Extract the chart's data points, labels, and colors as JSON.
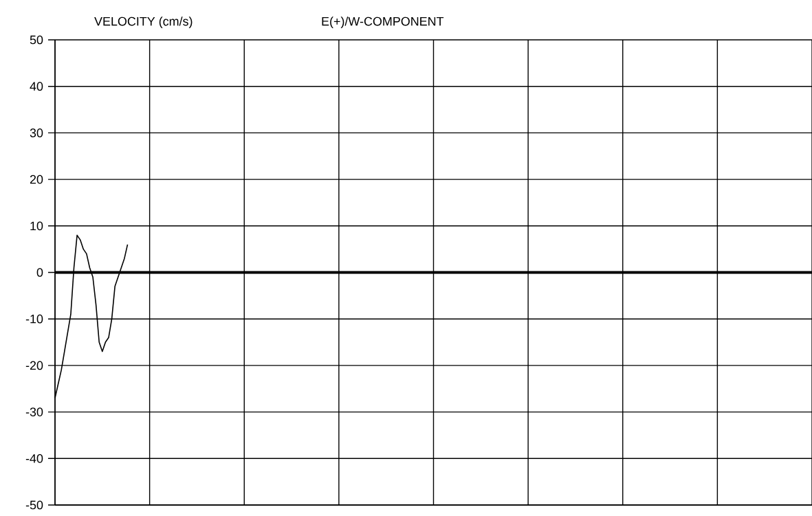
{
  "chart_data": {
    "type": "line",
    "title": "E(+)/W-COMPONENT",
    "ylabel": "VELOCITY (cm/s)",
    "categories": [
      null,
      null,
      null,
      null,
      null,
      null,
      null,
      null,
      null,
      null,
      null,
      null,
      null,
      null,
      null,
      null,
      null,
      null,
      null,
      null,
      null,
      null,
      null,
      null,
      null,
      null,
      null,
      null,
      null,
      null,
      null,
      null,
      null,
      null,
      null,
      null,
      null,
      null,
      null,
      null,
      null,
      null,
      null,
      null,
      null,
      null,
      null,
      null,
      null,
      null,
      null,
      null,
      null,
      null,
      null,
      null,
      null,
      null,
      null,
      null,
      null,
      null,
      null,
      null,
      null,
      null,
      null,
      null,
      null,
      null,
      null,
      null,
      null,
      null,
      null,
      null,
      null,
      null,
      null,
      null,
      null,
      null,
      null,
      null,
      null,
      null,
      null,
      null,
      null,
      null,
      null,
      null,
      null,
      null,
      null,
      null,
      null,
      null,
      null,
      null,
      null,
      null,
      null,
      null,
      null,
      null,
      null,
      null,
      null,
      null,
      null,
      null,
      null,
      null,
      null,
      null,
      null,
      null,
      null,
      null,
      null,
      null,
      null,
      null,
      null,
      null,
      null,
      null,
      null,
      null,
      null,
      null,
      null,
      null,
      null,
      null,
      null,
      null,
      null,
      null,
      null,
      null,
      null,
      null,
      null,
      null,
      null,
      null,
      null,
      null,
      null,
      null,
      null,
      null,
      null,
      null,
      null,
      null,
      null,
      null,
      null,
      null,
      null,
      null,
      null,
      null,
      null,
      null,
      null,
      null,
      null,
      null,
      null,
      null,
      null,
      null,
      null,
      null,
      null,
      null,
      null,
      null,
      null,
      null,
      null,
      null,
      null,
      null,
      null,
      null,
      null,
      null,
      null,
      null,
      null,
      null,
      null,
      null,
      null,
      null,
      null,
      null,
      null,
      null,
      null,
      null,
      null,
      null,
      null,
      null,
      null,
      null,
      null,
      null,
      null,
      null,
      null,
      null,
      null,
      null,
      null,
      null,
      null,
      null,
      null,
      null,
      null,
      null,
      null,
      null,
      null,
      null,
      null,
      null,
      null,
      null,
      null,
      null,
      null,
      null,
      null
    ],
    "series": [
      {
        "color": "#000000",
        "values": [
          -27,
          -24,
          -21,
          -17,
          -13,
          -9,
          1,
          8,
          7,
          5,
          4,
          1,
          -1,
          -7,
          -15,
          -17,
          -15,
          -14,
          -10,
          -3,
          -1,
          1,
          3,
          6,
          null,
          null,
          null,
          null,
          null,
          null,
          null,
          null,
          null,
          null,
          null,
          null,
          null,
          null,
          null,
          null,
          null,
          null,
          null,
          null,
          null,
          null,
          null,
          null,
          null,
          null,
          null,
          null,
          null,
          null,
          null,
          null,
          null,
          null,
          null,
          null,
          null,
          null,
          null,
          null,
          null,
          null,
          null,
          null,
          null,
          null,
          null,
          null,
          null,
          null,
          null,
          null,
          null,
          null,
          null,
          null,
          null,
          null,
          null,
          null,
          null,
          null,
          null,
          null,
          null,
          null,
          null,
          null,
          null,
          null,
          null,
          null,
          null,
          null,
          null,
          null,
          null,
          null,
          null,
          null,
          null,
          null,
          null,
          null,
          null,
          null,
          null,
          null,
          null,
          null,
          null,
          null,
          null,
          null,
          null,
          null,
          null,
          null,
          null,
          null,
          null,
          null,
          null,
          null,
          null,
          null,
          null,
          null,
          null,
          null,
          null,
          null,
          null,
          null,
          null,
          null,
          null,
          null,
          null,
          null,
          null,
          null,
          null,
          null,
          null,
          null,
          null,
          null,
          null,
          null,
          null,
          null,
          null,
          null,
          null,
          null,
          null,
          null,
          null,
          null,
          null,
          null,
          null,
          null,
          null,
          null,
          null,
          null,
          null,
          null,
          null,
          null,
          null,
          null,
          null,
          null,
          null,
          null,
          null,
          null,
          null,
          null,
          null,
          null,
          null,
          null,
          null,
          null,
          null,
          null,
          null,
          null,
          null,
          null,
          null,
          null,
          null,
          null,
          null,
          null,
          null,
          null,
          null,
          null,
          null,
          null,
          null,
          null,
          null,
          null,
          null,
          null,
          null,
          null,
          null,
          null,
          null,
          null,
          null,
          null,
          null,
          null,
          null,
          null,
          null,
          null,
          null,
          null,
          null,
          null,
          null,
          null,
          null,
          null,
          null,
          null,
          null
        ]
      }
    ],
    "ylim": [
      -50,
      50
    ],
    "yticks": [
      -50,
      -40,
      -30,
      -20,
      -10,
      0,
      10,
      20,
      30,
      40,
      50
    ],
    "ref_lines": [
      {
        "axis": "y",
        "value": 0,
        "color": "#000000"
      }
    ],
    "grid": true,
    "tick_labels": "y",
    "marker": "none",
    "line_style": "solid"
  }
}
